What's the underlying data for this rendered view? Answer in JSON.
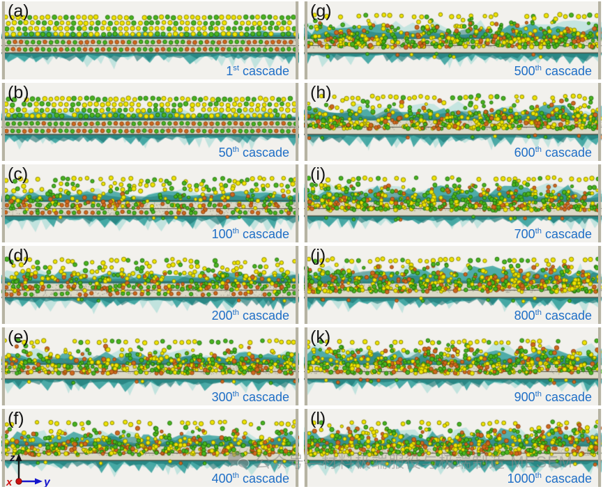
{
  "figure": {
    "panels": [
      {
        "letter": "(a)",
        "cascade": {
          "num": "1",
          "sup": "st",
          "word": "cascade"
        },
        "scene": {
          "seed": 11,
          "disorder": 0.03
        }
      },
      {
        "letter": "(b)",
        "cascade": {
          "num": "50",
          "sup": "th",
          "word": "cascade"
        },
        "scene": {
          "seed": 22,
          "disorder": 0.12
        }
      },
      {
        "letter": "(c)",
        "cascade": {
          "num": "100",
          "sup": "th",
          "word": "cascade"
        },
        "scene": {
          "seed": 33,
          "disorder": 0.32
        }
      },
      {
        "letter": "(d)",
        "cascade": {
          "num": "200",
          "sup": "th",
          "word": "cascade"
        },
        "scene": {
          "seed": 44,
          "disorder": 0.45
        }
      },
      {
        "letter": "(e)",
        "cascade": {
          "num": "300",
          "sup": "th",
          "word": "cascade"
        },
        "scene": {
          "seed": 55,
          "disorder": 0.55
        }
      },
      {
        "letter": "(f)",
        "cascade": {
          "num": "400",
          "sup": "th",
          "word": "cascade"
        },
        "scene": {
          "seed": 66,
          "disorder": 0.62
        }
      },
      {
        "letter": "(g)",
        "cascade": {
          "num": "500",
          "sup": "th",
          "word": "cascade"
        },
        "scene": {
          "seed": 77,
          "disorder": 0.7
        }
      },
      {
        "letter": "(h)",
        "cascade": {
          "num": "600",
          "sup": "th",
          "word": "cascade"
        },
        "scene": {
          "seed": 88,
          "disorder": 0.76
        }
      },
      {
        "letter": "(i)",
        "cascade": {
          "num": "700",
          "sup": "th",
          "word": "cascade"
        },
        "scene": {
          "seed": 99,
          "disorder": 0.82
        }
      },
      {
        "letter": "(j)",
        "cascade": {
          "num": "800",
          "sup": "th",
          "word": "cascade"
        },
        "scene": {
          "seed": 110,
          "disorder": 0.88
        }
      },
      {
        "letter": "(k)",
        "cascade": {
          "num": "900",
          "sup": "th",
          "word": "cascade"
        },
        "scene": {
          "seed": 121,
          "disorder": 0.94
        }
      },
      {
        "letter": "(l)",
        "cascade": {
          "num": "1000",
          "sup": "th",
          "word": "cascade"
        },
        "scene": {
          "seed": 132,
          "disorder": 1.0
        }
      }
    ],
    "axis": {
      "x": "x",
      "y": "y",
      "z": "z"
    },
    "watermark": {
      "text": "公众号—材料极端服役与极端制造 MESEM"
    },
    "legend_note": "yellow/green spheres = adatoms, orange spheres = substrate atoms, teal surfaces = surface mesh, beige slab = film cross-section",
    "palette": {
      "panel_bg": "#f2f1ed",
      "edge_bar": "#b6b3a3",
      "slab": "#dcd9c7",
      "slab_line": "#3c3c30",
      "teal": "#2f9e9a",
      "teal_dark": "#17726f",
      "teal_light": "#8fd6d0",
      "atom_yellow": "#f0e400",
      "atom_yellow_edge": "#7c7c00",
      "atom_green": "#4ab520",
      "atom_green_edge": "#1e6a08",
      "atom_orange": "#cf6a1e",
      "atom_orange_edge": "#8a3c0a",
      "speckle": "#807e74",
      "letter_color": "#141414",
      "cascade_color": "#1e6ec6",
      "axis_x_color": "#cc1111",
      "axis_y_color": "#1515cc",
      "axis_z_color": "#10102a",
      "watermark_color": "#8a8a8a"
    }
  }
}
